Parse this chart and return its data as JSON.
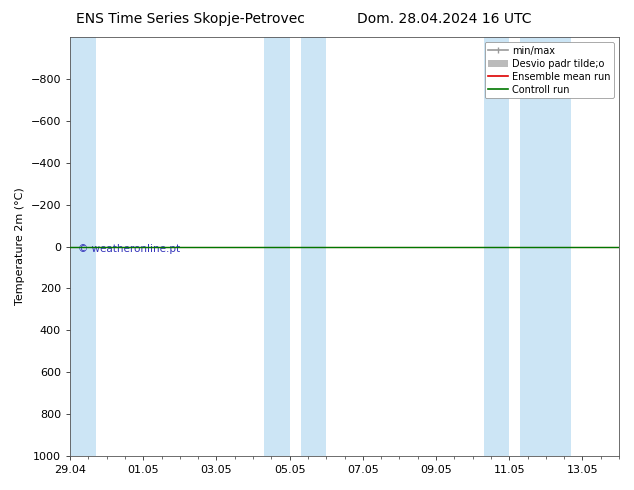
{
  "title_left": "ENS Time Series Skopje-Petrovec",
  "title_right": "Dom. 28.04.2024 16 UTC",
  "ylabel": "Temperature 2m (°C)",
  "ylim_bottom": -1000,
  "ylim_top": 1000,
  "yticks": [
    -800,
    -600,
    -400,
    -200,
    0,
    200,
    400,
    600,
    800,
    1000
  ],
  "xlim": [
    0,
    15
  ],
  "xtick_labels": [
    "29.04",
    "01.05",
    "03.05",
    "05.05",
    "07.05",
    "09.05",
    "11.05",
    "13.05"
  ],
  "xtick_positions": [
    0,
    2,
    4,
    6,
    8,
    10,
    12,
    14
  ],
  "watermark": "© weatheronline.pt",
  "watermark_color": "#3333bb",
  "background_color": "#ffffff",
  "shaded_bands": [
    [
      0.0,
      0.7
    ],
    [
      5.3,
      6.0
    ],
    [
      6.3,
      7.0
    ],
    [
      11.3,
      12.0
    ],
    [
      12.3,
      13.7
    ]
  ],
  "shade_color": "#cce5f5",
  "green_line_color": "#007700",
  "red_line_color": "#dd0000",
  "legend_entries": [
    "min/max",
    "Desvio padr tilde;o",
    "Ensemble mean run",
    "Controll run"
  ],
  "legend_colors_line": [
    "#999999",
    "#bbbbbb",
    "#dd0000",
    "#007700"
  ],
  "title_fontsize": 10,
  "axis_label_fontsize": 8,
  "tick_fontsize": 8,
  "legend_fontsize": 7
}
